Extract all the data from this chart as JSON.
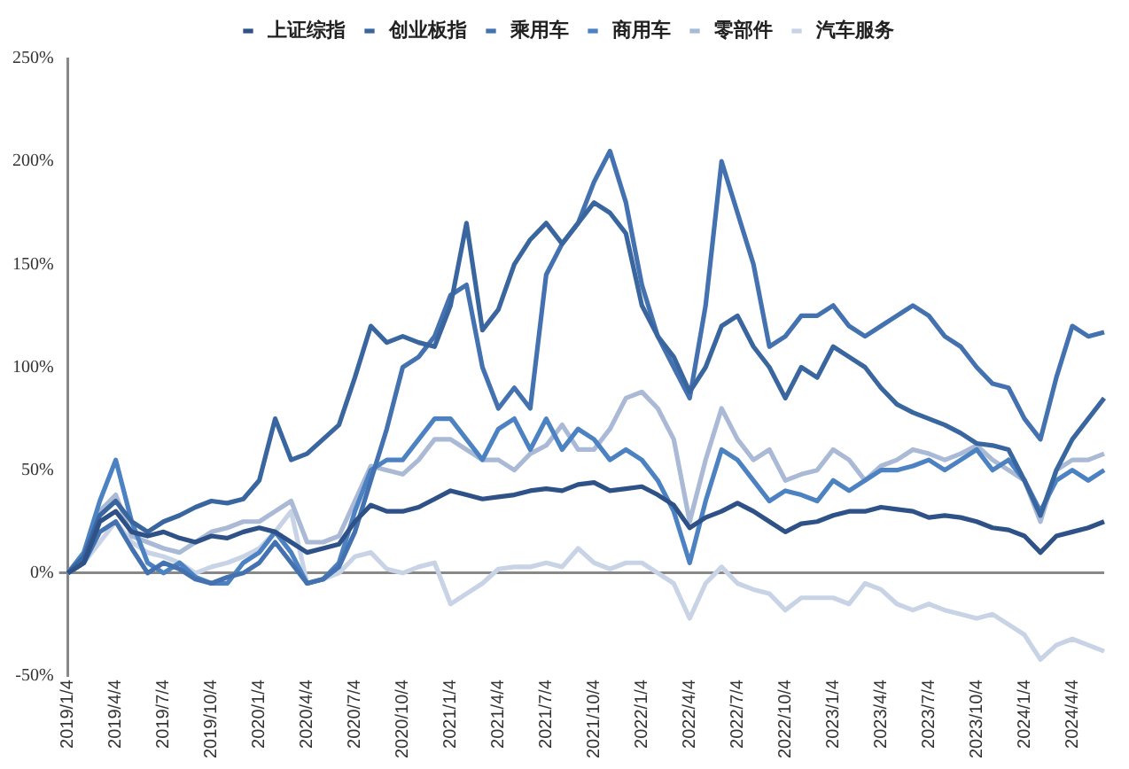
{
  "chart_data": {
    "type": "line",
    "categories": [
      "2019/1/4",
      null,
      null,
      "2019/4/4",
      null,
      null,
      "2019/7/4",
      null,
      null,
      "2019/10/4",
      null,
      null,
      "2020/1/4",
      null,
      null,
      "2020/4/4",
      null,
      null,
      "2020/7/4",
      null,
      null,
      "2020/10/4",
      null,
      null,
      "2021/1/4",
      null,
      null,
      "2021/4/4",
      null,
      null,
      "2021/7/4",
      null,
      null,
      "2021/10/4",
      null,
      null,
      "2022/1/4",
      null,
      null,
      "2022/4/4",
      null,
      null,
      "2022/7/4",
      null,
      null,
      "2022/10/4",
      null,
      null,
      "2023/1/4",
      null,
      null,
      "2023/4/4",
      null,
      null,
      "2023/7/4",
      null,
      null,
      "2023/10/4",
      null,
      null,
      "2024/1/4",
      null,
      null,
      "2024/4/4",
      null,
      null
    ],
    "series": [
      {
        "name": "上证综指",
        "color": "#2e5287",
        "values": [
          0,
          5,
          25,
          30,
          20,
          18,
          20,
          17,
          15,
          18,
          17,
          20,
          22,
          20,
          15,
          10,
          12,
          14,
          25,
          33,
          30,
          30,
          32,
          36,
          40,
          38,
          36,
          37,
          38,
          40,
          41,
          40,
          43,
          44,
          40,
          41,
          42,
          38,
          33,
          22,
          27,
          30,
          34,
          30,
          25,
          20,
          24,
          25,
          28,
          30,
          30,
          32,
          31,
          30,
          27,
          28,
          27,
          25,
          22,
          21,
          18,
          10,
          18,
          20,
          22,
          25
        ]
      },
      {
        "name": "创业板指",
        "color": "#3a66a0",
        "values": [
          0,
          8,
          28,
          35,
          25,
          20,
          25,
          28,
          32,
          35,
          34,
          36,
          45,
          75,
          55,
          58,
          65,
          72,
          95,
          120,
          112,
          115,
          112,
          110,
          130,
          170,
          118,
          128,
          150,
          162,
          170,
          160,
          170,
          180,
          175,
          165,
          130,
          115,
          105,
          88,
          100,
          120,
          125,
          110,
          100,
          85,
          100,
          95,
          110,
          105,
          100,
          90,
          82,
          78,
          75,
          72,
          68,
          63,
          62,
          60,
          45,
          28,
          50,
          65,
          75,
          85
        ]
      },
      {
        "name": "乘用车",
        "color": "#4472b0",
        "values": [
          0,
          5,
          20,
          25,
          12,
          0,
          5,
          2,
          -3,
          -5,
          -2,
          0,
          5,
          15,
          5,
          -5,
          -3,
          3,
          20,
          45,
          70,
          100,
          105,
          115,
          135,
          140,
          100,
          80,
          90,
          80,
          145,
          160,
          170,
          190,
          205,
          180,
          140,
          115,
          100,
          85,
          130,
          200,
          175,
          150,
          110,
          115,
          125,
          125,
          130,
          120,
          115,
          120,
          125,
          130,
          125,
          115,
          110,
          100,
          92,
          90,
          75,
          65,
          95,
          120,
          115,
          117
        ]
      },
      {
        "name": "商用车",
        "color": "#4c82c2",
        "values": [
          0,
          10,
          35,
          55,
          25,
          5,
          0,
          5,
          -2,
          -5,
          -5,
          5,
          10,
          20,
          10,
          -5,
          -3,
          5,
          30,
          50,
          55,
          55,
          65,
          75,
          75,
          65,
          55,
          70,
          75,
          60,
          75,
          60,
          70,
          65,
          55,
          60,
          55,
          45,
          30,
          5,
          35,
          60,
          55,
          45,
          35,
          40,
          38,
          35,
          45,
          40,
          45,
          50,
          50,
          52,
          55,
          50,
          55,
          60,
          50,
          55,
          45,
          30,
          45,
          50,
          45,
          50
        ]
      },
      {
        "name": "零部件",
        "color": "#a9b9d6",
        "values": [
          0,
          10,
          30,
          38,
          18,
          15,
          12,
          10,
          15,
          20,
          22,
          25,
          25,
          30,
          35,
          15,
          15,
          18,
          35,
          52,
          50,
          48,
          55,
          65,
          65,
          60,
          55,
          55,
          50,
          58,
          62,
          72,
          60,
          60,
          70,
          85,
          88,
          80,
          65,
          25,
          55,
          80,
          65,
          55,
          60,
          45,
          48,
          50,
          60,
          55,
          45,
          52,
          55,
          60,
          58,
          55,
          58,
          62,
          55,
          50,
          45,
          25,
          50,
          55,
          55,
          58
        ]
      },
      {
        "name": "汽车服务",
        "color": "#c8d3e6",
        "values": [
          0,
          5,
          15,
          25,
          15,
          10,
          8,
          5,
          0,
          3,
          5,
          8,
          12,
          20,
          30,
          -5,
          -3,
          0,
          8,
          10,
          2,
          0,
          3,
          5,
          -15,
          -10,
          -5,
          2,
          3,
          3,
          5,
          3,
          12,
          5,
          2,
          5,
          5,
          0,
          -5,
          -22,
          -5,
          3,
          -5,
          -8,
          -10,
          -18,
          -12,
          -12,
          -12,
          -15,
          -5,
          -8,
          -15,
          -18,
          -15,
          -18,
          -20,
          -22,
          -20,
          -25,
          -30,
          -42,
          -35,
          -32,
          -35,
          -38
        ]
      }
    ],
    "ylim": [
      -50,
      250
    ],
    "yticks": [
      {
        "value": -50,
        "label": "-50%"
      },
      {
        "value": 0,
        "label": "0%"
      },
      {
        "value": 50,
        "label": "50%"
      },
      {
        "value": 100,
        "label": "100%"
      },
      {
        "value": 150,
        "label": "150%"
      },
      {
        "value": 200,
        "label": "200%"
      },
      {
        "value": 250,
        "label": "250%"
      }
    ],
    "legend": "top",
    "marker": "none",
    "line_style": "solid"
  }
}
